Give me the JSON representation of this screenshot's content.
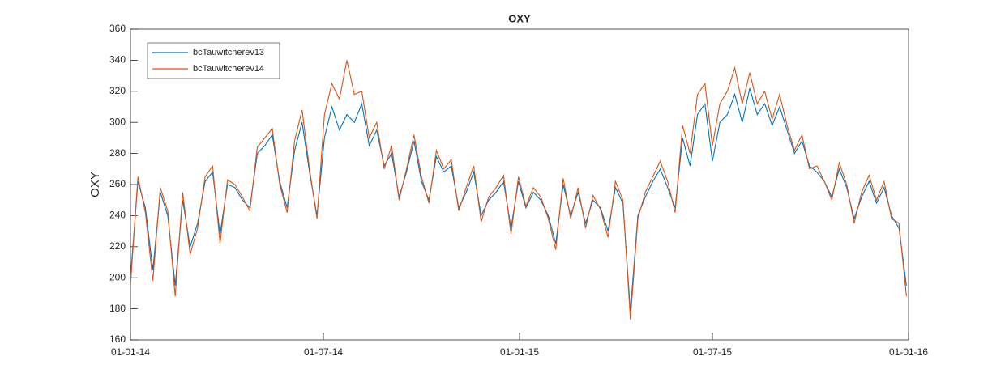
{
  "chart_data": {
    "type": "line",
    "title": "OXY",
    "ylabel": "OXY",
    "x": [
      "2014-01-01",
      "2014-01-08",
      "2014-01-15",
      "2014-01-22",
      "2014-01-29",
      "2014-02-05",
      "2014-02-12",
      "2014-02-19",
      "2014-02-26",
      "2014-03-05",
      "2014-03-12",
      "2014-03-19",
      "2014-03-26",
      "2014-04-02",
      "2014-04-09",
      "2014-04-16",
      "2014-04-23",
      "2014-04-30",
      "2014-05-07",
      "2014-05-14",
      "2014-05-21",
      "2014-05-28",
      "2014-06-04",
      "2014-06-11",
      "2014-06-18",
      "2014-06-25",
      "2014-07-02",
      "2014-07-09",
      "2014-07-16",
      "2014-07-23",
      "2014-07-30",
      "2014-08-06",
      "2014-08-13",
      "2014-08-20",
      "2014-08-27",
      "2014-09-03",
      "2014-09-10",
      "2014-09-17",
      "2014-09-24",
      "2014-10-01",
      "2014-10-08",
      "2014-10-15",
      "2014-10-22",
      "2014-10-29",
      "2014-11-05",
      "2014-11-12",
      "2014-11-19",
      "2014-11-26",
      "2014-12-03",
      "2014-12-10",
      "2014-12-17",
      "2014-12-24",
      "2014-12-31",
      "2015-01-07",
      "2015-01-14",
      "2015-01-21",
      "2015-01-28",
      "2015-02-04",
      "2015-02-11",
      "2015-02-18",
      "2015-02-25",
      "2015-03-04",
      "2015-03-11",
      "2015-03-18",
      "2015-03-25",
      "2015-04-01",
      "2015-04-08",
      "2015-04-15",
      "2015-04-22",
      "2015-04-29",
      "2015-05-06",
      "2015-05-13",
      "2015-05-20",
      "2015-05-27",
      "2015-06-03",
      "2015-06-10",
      "2015-06-17",
      "2015-06-24",
      "2015-07-01",
      "2015-07-08",
      "2015-07-15",
      "2015-07-22",
      "2015-07-29",
      "2015-08-05",
      "2015-08-12",
      "2015-08-19",
      "2015-08-26",
      "2015-09-02",
      "2015-09-09",
      "2015-09-16",
      "2015-09-23",
      "2015-09-30",
      "2015-10-07",
      "2015-10-14",
      "2015-10-21",
      "2015-10-28",
      "2015-11-04",
      "2015-11-11",
      "2015-11-18",
      "2015-11-25",
      "2015-12-02",
      "2015-12-09",
      "2015-12-16",
      "2015-12-23",
      "2015-12-30"
    ],
    "series": [
      {
        "name": "bcTauwitcherev13",
        "color": "#0072bd",
        "values": [
          200,
          262,
          245,
          205,
          255,
          240,
          195,
          250,
          220,
          235,
          262,
          268,
          228,
          260,
          258,
          250,
          245,
          280,
          285,
          292,
          262,
          245,
          282,
          300,
          268,
          240,
          290,
          310,
          295,
          305,
          300,
          312,
          285,
          295,
          272,
          280,
          252,
          268,
          288,
          262,
          250,
          278,
          268,
          272,
          245,
          255,
          268,
          240,
          250,
          255,
          262,
          232,
          262,
          245,
          255,
          250,
          240,
          222,
          260,
          240,
          255,
          235,
          250,
          245,
          230,
          258,
          248,
          178,
          240,
          252,
          262,
          270,
          258,
          245,
          290,
          272,
          305,
          312,
          275,
          300,
          305,
          318,
          300,
          322,
          305,
          312,
          298,
          310,
          295,
          280,
          288,
          272,
          268,
          262,
          252,
          270,
          258,
          238,
          252,
          262,
          248,
          258,
          240,
          232,
          195
        ]
      },
      {
        "name": "bcTauwitcherev14",
        "color": "#d95319",
        "values": [
          195,
          265,
          242,
          198,
          258,
          243,
          188,
          255,
          215,
          232,
          265,
          272,
          222,
          263,
          260,
          252,
          243,
          284,
          290,
          296,
          260,
          242,
          288,
          308,
          270,
          238,
          305,
          325,
          315,
          340,
          318,
          320,
          290,
          300,
          270,
          285,
          250,
          270,
          292,
          265,
          248,
          282,
          270,
          276,
          243,
          258,
          272,
          236,
          252,
          258,
          266,
          228,
          265,
          246,
          258,
          252,
          238,
          218,
          264,
          238,
          258,
          232,
          253,
          244,
          226,
          262,
          250,
          173,
          238,
          255,
          265,
          275,
          262,
          242,
          298,
          280,
          318,
          325,
          285,
          312,
          320,
          335,
          312,
          332,
          312,
          320,
          302,
          318,
          298,
          282,
          292,
          270,
          272,
          262,
          250,
          274,
          260,
          235,
          255,
          266,
          250,
          262,
          238,
          235,
          188
        ]
      }
    ],
    "xlim": [
      "2014-01-01",
      "2016-01-01"
    ],
    "xticks": [
      {
        "value": "2014-01-01",
        "label": "01-01-14"
      },
      {
        "value": "2014-07-01",
        "label": "01-07-14"
      },
      {
        "value": "2015-01-01",
        "label": "01-01-15"
      },
      {
        "value": "2015-07-01",
        "label": "01-07-15"
      },
      {
        "value": "2016-01-01",
        "label": "01-01-16"
      }
    ],
    "ylim": [
      160,
      360
    ],
    "yticks": [
      160,
      180,
      200,
      220,
      240,
      260,
      280,
      300,
      320,
      340,
      360
    ],
    "legend": "northwest"
  }
}
